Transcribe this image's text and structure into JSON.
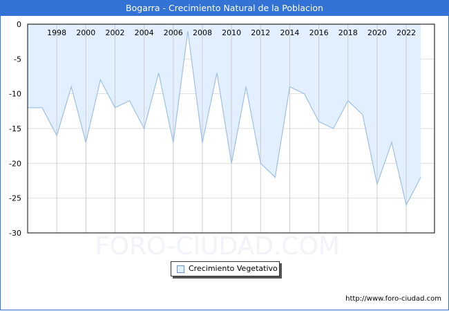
{
  "header": {
    "title": "Bogarra - Crecimiento Natural de la Poblacion"
  },
  "legend": {
    "label": "Crecimiento Vegetativo",
    "swatch_color": "#e1efff"
  },
  "watermark": "FORO-CIUDAD.COM",
  "footer": {
    "url": "http://www.foro-ciudad.com"
  },
  "colors": {
    "header_bg": "#3373d6",
    "fill": "#e1efff",
    "line": "#9dbfe8",
    "grid": "#dddddd"
  },
  "chart_data": {
    "type": "area",
    "title": "Bogarra - Crecimiento Natural de la Poblacion",
    "xlabel": "",
    "ylabel": "",
    "x": [
      1996,
      1997,
      1998,
      1999,
      2000,
      2001,
      2002,
      2003,
      2004,
      2005,
      2006,
      2007,
      2008,
      2009,
      2010,
      2011,
      2012,
      2013,
      2014,
      2015,
      2016,
      2017,
      2018,
      2019,
      2020,
      2021,
      2022,
      2023
    ],
    "series": [
      {
        "name": "Crecimiento Vegetativo",
        "values": [
          -12,
          -12,
          -16,
          -9,
          -17,
          -8,
          -12,
          -11,
          -15,
          -7,
          -17,
          -1,
          -17,
          -7,
          -20,
          -9,
          -20,
          -22,
          -9,
          -10,
          -14,
          -15,
          -11,
          -13,
          -23,
          -17,
          -26,
          -22
        ]
      }
    ],
    "x_tick_labels": [
      "1998",
      "2000",
      "2002",
      "2004",
      "2006",
      "2008",
      "2010",
      "2012",
      "2014",
      "2016",
      "2018",
      "2020",
      "2022"
    ],
    "y_tick_labels": [
      "0",
      "-5",
      "-10",
      "-15",
      "-20",
      "-25",
      "-30"
    ],
    "ylim": [
      -30,
      0
    ],
    "grid": true,
    "legend_position": "bottom"
  }
}
